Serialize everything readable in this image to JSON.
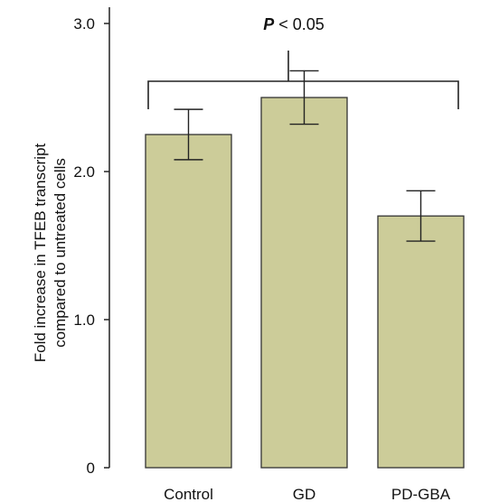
{
  "chart_data": {
    "type": "bar",
    "categories": [
      "Control",
      "GD",
      "PD-GBA"
    ],
    "values": [
      2.25,
      2.5,
      1.7
    ],
    "errors": [
      0.17,
      0.18,
      0.17
    ],
    "ylabel": [
      "Fold increase in TFEB transcript",
      "compared to untreated cells"
    ],
    "xlabel": "",
    "yticks": [
      {
        "value": 0,
        "label": "0"
      },
      {
        "value": 1.0,
        "label": "1.0"
      },
      {
        "value": 2.0,
        "label": "2.0"
      },
      {
        "value": 3.0,
        "label": "3.0"
      }
    ],
    "ylim": [
      0,
      3.15
    ],
    "bar_color": "#cccc99",
    "bar_stroke": "#333333",
    "grid": false,
    "annotation": {
      "prefix": "P",
      "suffix": " < 0.05"
    }
  }
}
